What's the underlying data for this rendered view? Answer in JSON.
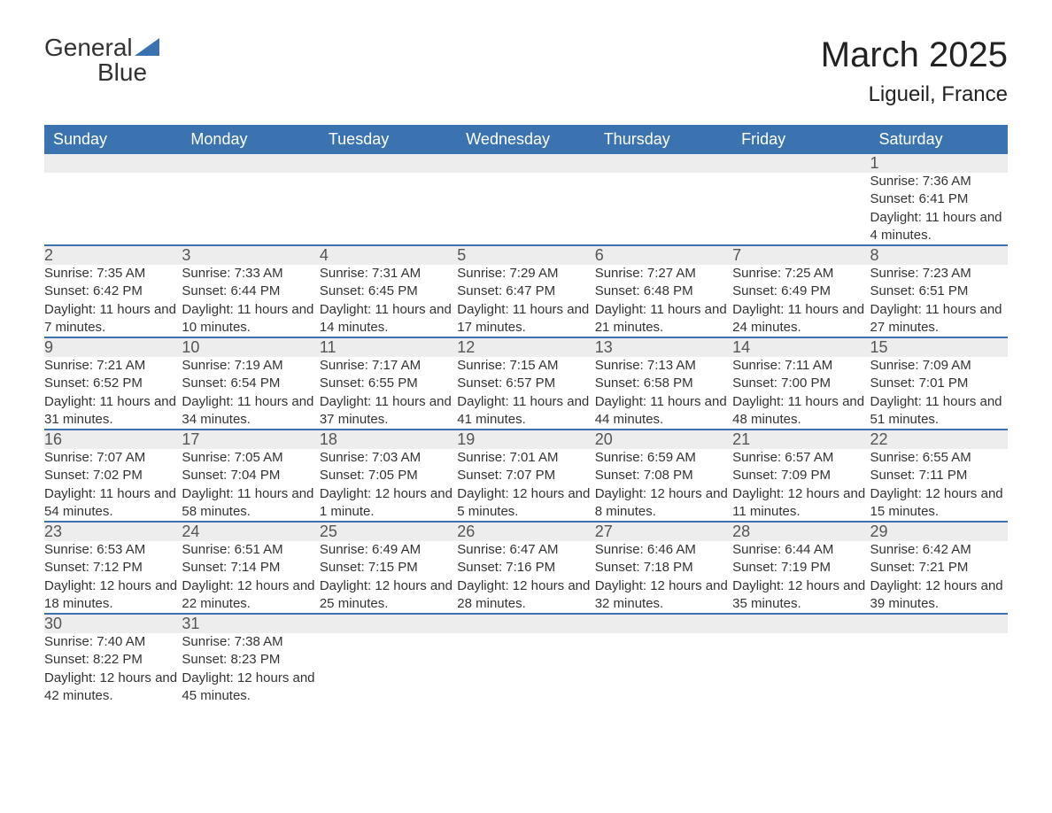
{
  "logo": {
    "text_general": "General",
    "text_blue": "Blue",
    "shape_color": "#3b72b0",
    "text_dark_color": "#222222"
  },
  "header": {
    "title": "March 2025",
    "location": "Ligueil, France"
  },
  "colors": {
    "header_bg": "#3b72b0",
    "header_fg": "#ffffff",
    "daynum_bg": "#ededed",
    "daynum_fg": "#555555",
    "body_text": "#333333",
    "row_border": "#3b72b0",
    "page_bg": "#ffffff"
  },
  "typography": {
    "title_fontsize": 40,
    "location_fontsize": 24,
    "header_fontsize": 18,
    "daynum_fontsize": 18,
    "cell_fontsize": 15
  },
  "weekdays": [
    "Sunday",
    "Monday",
    "Tuesday",
    "Wednesday",
    "Thursday",
    "Friday",
    "Saturday"
  ],
  "weeks": [
    [
      null,
      null,
      null,
      null,
      null,
      null,
      {
        "num": "1",
        "sunrise": "Sunrise: 7:36 AM",
        "sunset": "Sunset: 6:41 PM",
        "daylight": "Daylight: 11 hours and 4 minutes."
      }
    ],
    [
      {
        "num": "2",
        "sunrise": "Sunrise: 7:35 AM",
        "sunset": "Sunset: 6:42 PM",
        "daylight": "Daylight: 11 hours and 7 minutes."
      },
      {
        "num": "3",
        "sunrise": "Sunrise: 7:33 AM",
        "sunset": "Sunset: 6:44 PM",
        "daylight": "Daylight: 11 hours and 10 minutes."
      },
      {
        "num": "4",
        "sunrise": "Sunrise: 7:31 AM",
        "sunset": "Sunset: 6:45 PM",
        "daylight": "Daylight: 11 hours and 14 minutes."
      },
      {
        "num": "5",
        "sunrise": "Sunrise: 7:29 AM",
        "sunset": "Sunset: 6:47 PM",
        "daylight": "Daylight: 11 hours and 17 minutes."
      },
      {
        "num": "6",
        "sunrise": "Sunrise: 7:27 AM",
        "sunset": "Sunset: 6:48 PM",
        "daylight": "Daylight: 11 hours and 21 minutes."
      },
      {
        "num": "7",
        "sunrise": "Sunrise: 7:25 AM",
        "sunset": "Sunset: 6:49 PM",
        "daylight": "Daylight: 11 hours and 24 minutes."
      },
      {
        "num": "8",
        "sunrise": "Sunrise: 7:23 AM",
        "sunset": "Sunset: 6:51 PM",
        "daylight": "Daylight: 11 hours and 27 minutes."
      }
    ],
    [
      {
        "num": "9",
        "sunrise": "Sunrise: 7:21 AM",
        "sunset": "Sunset: 6:52 PM",
        "daylight": "Daylight: 11 hours and 31 minutes."
      },
      {
        "num": "10",
        "sunrise": "Sunrise: 7:19 AM",
        "sunset": "Sunset: 6:54 PM",
        "daylight": "Daylight: 11 hours and 34 minutes."
      },
      {
        "num": "11",
        "sunrise": "Sunrise: 7:17 AM",
        "sunset": "Sunset: 6:55 PM",
        "daylight": "Daylight: 11 hours and 37 minutes."
      },
      {
        "num": "12",
        "sunrise": "Sunrise: 7:15 AM",
        "sunset": "Sunset: 6:57 PM",
        "daylight": "Daylight: 11 hours and 41 minutes."
      },
      {
        "num": "13",
        "sunrise": "Sunrise: 7:13 AM",
        "sunset": "Sunset: 6:58 PM",
        "daylight": "Daylight: 11 hours and 44 minutes."
      },
      {
        "num": "14",
        "sunrise": "Sunrise: 7:11 AM",
        "sunset": "Sunset: 7:00 PM",
        "daylight": "Daylight: 11 hours and 48 minutes."
      },
      {
        "num": "15",
        "sunrise": "Sunrise: 7:09 AM",
        "sunset": "Sunset: 7:01 PM",
        "daylight": "Daylight: 11 hours and 51 minutes."
      }
    ],
    [
      {
        "num": "16",
        "sunrise": "Sunrise: 7:07 AM",
        "sunset": "Sunset: 7:02 PM",
        "daylight": "Daylight: 11 hours and 54 minutes."
      },
      {
        "num": "17",
        "sunrise": "Sunrise: 7:05 AM",
        "sunset": "Sunset: 7:04 PM",
        "daylight": "Daylight: 11 hours and 58 minutes."
      },
      {
        "num": "18",
        "sunrise": "Sunrise: 7:03 AM",
        "sunset": "Sunset: 7:05 PM",
        "daylight": "Daylight: 12 hours and 1 minute."
      },
      {
        "num": "19",
        "sunrise": "Sunrise: 7:01 AM",
        "sunset": "Sunset: 7:07 PM",
        "daylight": "Daylight: 12 hours and 5 minutes."
      },
      {
        "num": "20",
        "sunrise": "Sunrise: 6:59 AM",
        "sunset": "Sunset: 7:08 PM",
        "daylight": "Daylight: 12 hours and 8 minutes."
      },
      {
        "num": "21",
        "sunrise": "Sunrise: 6:57 AM",
        "sunset": "Sunset: 7:09 PM",
        "daylight": "Daylight: 12 hours and 11 minutes."
      },
      {
        "num": "22",
        "sunrise": "Sunrise: 6:55 AM",
        "sunset": "Sunset: 7:11 PM",
        "daylight": "Daylight: 12 hours and 15 minutes."
      }
    ],
    [
      {
        "num": "23",
        "sunrise": "Sunrise: 6:53 AM",
        "sunset": "Sunset: 7:12 PM",
        "daylight": "Daylight: 12 hours and 18 minutes."
      },
      {
        "num": "24",
        "sunrise": "Sunrise: 6:51 AM",
        "sunset": "Sunset: 7:14 PM",
        "daylight": "Daylight: 12 hours and 22 minutes."
      },
      {
        "num": "25",
        "sunrise": "Sunrise: 6:49 AM",
        "sunset": "Sunset: 7:15 PM",
        "daylight": "Daylight: 12 hours and 25 minutes."
      },
      {
        "num": "26",
        "sunrise": "Sunrise: 6:47 AM",
        "sunset": "Sunset: 7:16 PM",
        "daylight": "Daylight: 12 hours and 28 minutes."
      },
      {
        "num": "27",
        "sunrise": "Sunrise: 6:46 AM",
        "sunset": "Sunset: 7:18 PM",
        "daylight": "Daylight: 12 hours and 32 minutes."
      },
      {
        "num": "28",
        "sunrise": "Sunrise: 6:44 AM",
        "sunset": "Sunset: 7:19 PM",
        "daylight": "Daylight: 12 hours and 35 minutes."
      },
      {
        "num": "29",
        "sunrise": "Sunrise: 6:42 AM",
        "sunset": "Sunset: 7:21 PM",
        "daylight": "Daylight: 12 hours and 39 minutes."
      }
    ],
    [
      {
        "num": "30",
        "sunrise": "Sunrise: 7:40 AM",
        "sunset": "Sunset: 8:22 PM",
        "daylight": "Daylight: 12 hours and 42 minutes."
      },
      {
        "num": "31",
        "sunrise": "Sunrise: 7:38 AM",
        "sunset": "Sunset: 8:23 PM",
        "daylight": "Daylight: 12 hours and 45 minutes."
      },
      null,
      null,
      null,
      null,
      null
    ]
  ]
}
